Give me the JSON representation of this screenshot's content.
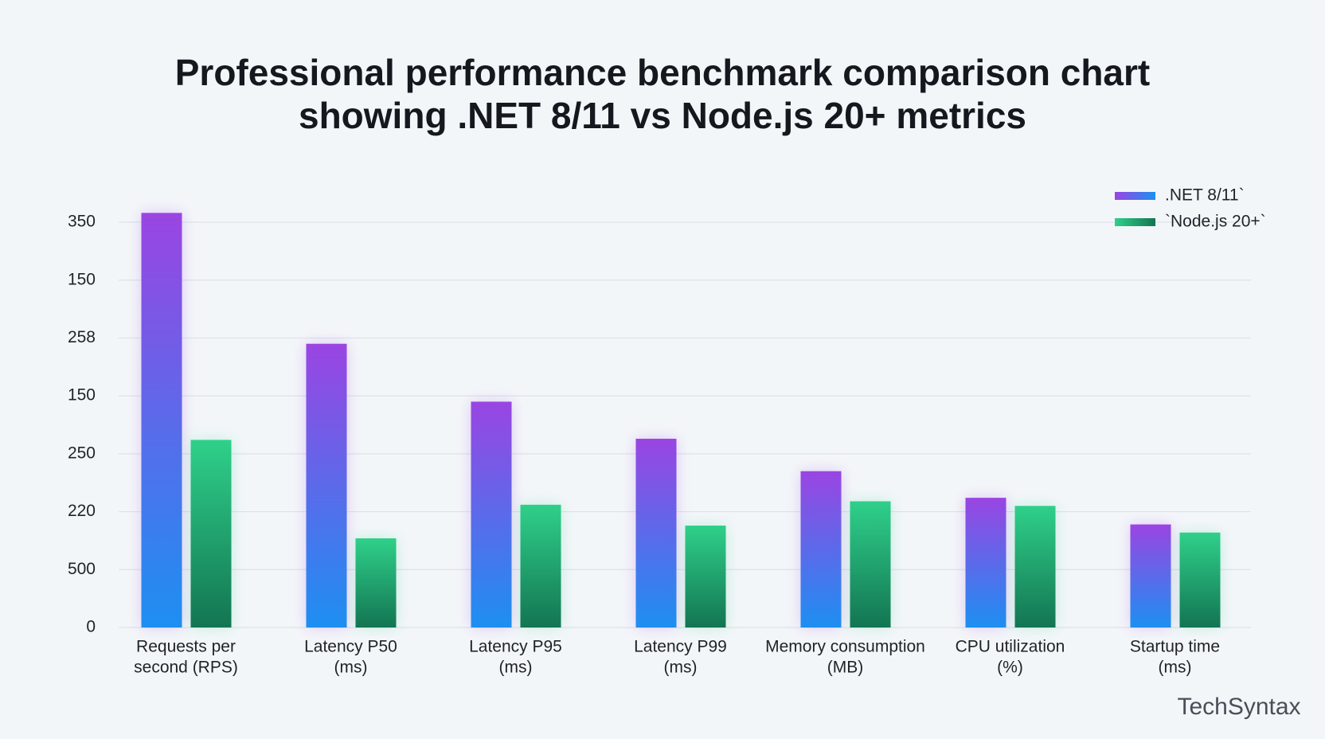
{
  "chart_data": {
    "type": "bar",
    "title": [
      "Professional performance benchmark comparison chart",
      "showing .NET 8/11 vs Node.js 20+ metrics"
    ],
    "categories": [
      [
        "Requests per",
        "second (RPS)"
      ],
      [
        "Latency P50",
        "(ms)"
      ],
      [
        "Latency P95",
        "(ms)"
      ],
      [
        "Latency P99",
        "(ms)"
      ],
      [
        "Memory consumption",
        "(MB)"
      ],
      [
        "CPU utilization",
        "(%)"
      ],
      [
        "Startup time",
        "(ms)"
      ]
    ],
    "series": [
      {
        "name": ".NET 8/11`",
        "gradient": [
          "#9a45e2",
          "#1d8ff2"
        ],
        "values": [
          358,
          245,
          195,
          163,
          135,
          112,
          89
        ]
      },
      {
        "name": "`Node.js 20+`",
        "gradient": [
          "#2fd08a",
          "#137552"
        ],
        "values": [
          162,
          77,
          106,
          88,
          109,
          105,
          82
        ]
      }
    ],
    "ylim": [
      0,
      350
    ],
    "yticks": [
      0,
      {
        "value": 50,
        "label": "500"
      },
      {
        "value": 100,
        "label": "220"
      },
      {
        "value": 150,
        "label": "250"
      },
      {
        "value": 200,
        "label": "150"
      },
      {
        "value": 250,
        "label": "258"
      },
      {
        "value": 300,
        "label": "150"
      },
      350
    ],
    "grid": true,
    "legend": "top-right",
    "watermark": "TechSyntax"
  }
}
